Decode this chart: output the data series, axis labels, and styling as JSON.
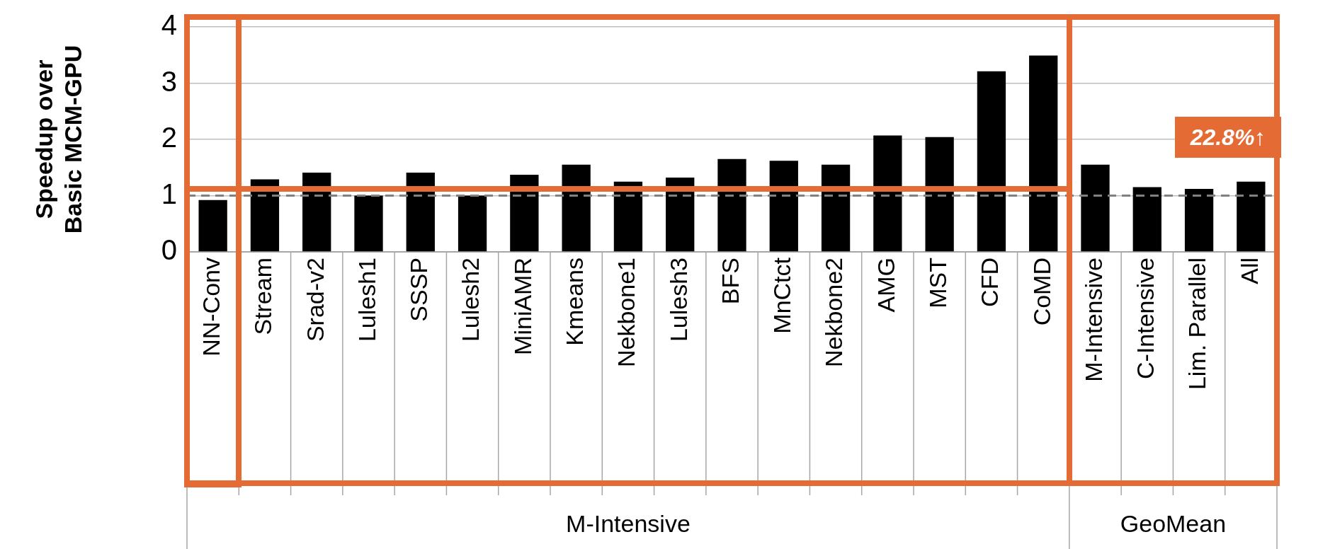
{
  "chart_data": {
    "type": "bar",
    "ylabel": "Speedup over\nBasic MCM-GPU",
    "categories": [
      "NN-Conv",
      "Stream",
      "Srad-v2",
      "Lulesh1",
      "SSSP",
      "Lulesh2",
      "MiniAMR",
      "Kmeans",
      "Nekbone1",
      "Lulesh3",
      "BFS",
      "MnCtct",
      "Nekbone2",
      "AMG",
      "MST",
      "CFD",
      "CoMD",
      "M-Intensive",
      "C-Intensive",
      "Lim. Parallel",
      "All"
    ],
    "values": [
      0.92,
      1.29,
      1.41,
      1.0,
      1.41,
      1.0,
      1.37,
      1.55,
      1.25,
      1.32,
      1.65,
      1.62,
      1.55,
      2.07,
      2.04,
      3.21,
      3.49,
      1.55,
      1.15,
      1.12,
      1.25
    ],
    "color": "#000000",
    "ylim": [
      0,
      4
    ],
    "yticks": [
      0,
      1,
      2,
      3,
      4
    ],
    "grid": "y",
    "ref_lines": [
      {
        "axis": "y",
        "value": 1,
        "color": "#808080",
        "line_style": "dashed"
      }
    ],
    "annotations": [
      "M-Intensive",
      "GeoMean",
      "22.8%↑"
    ]
  }
}
